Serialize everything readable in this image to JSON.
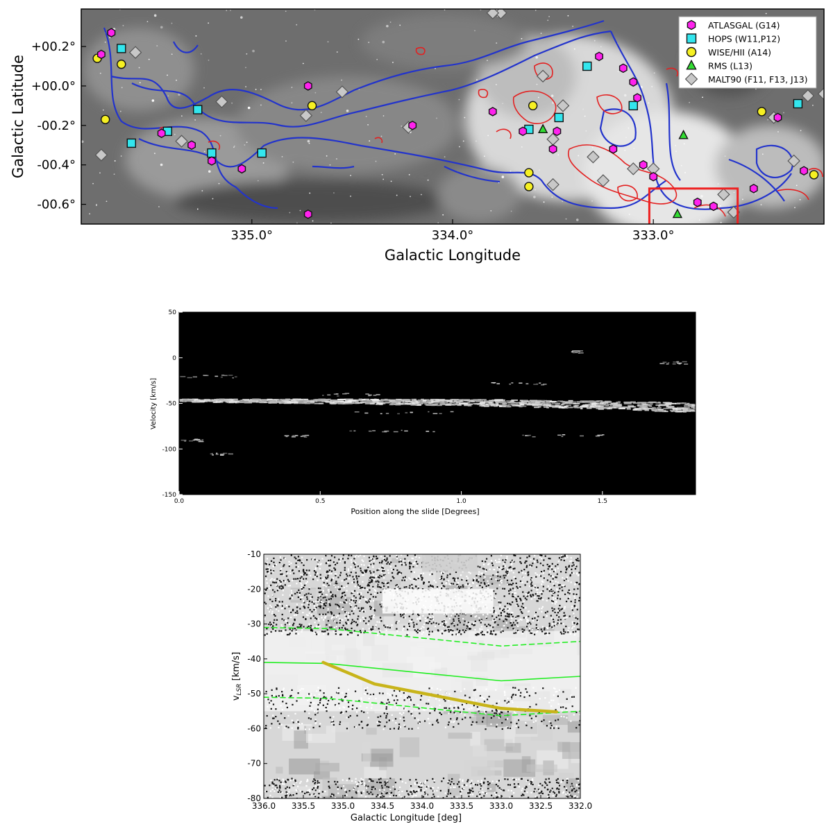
{
  "chart_data": [
    {
      "type": "scatter",
      "panel": "sky-map",
      "xlabel": "Galactic Longitude",
      "ylabel": "Galactic Latitude",
      "xlim": [
        335.85,
        332.15
      ],
      "ylim": [
        -0.7,
        0.39
      ],
      "x_ticks": [
        {
          "v": 335.0,
          "label": "335.0°"
        },
        {
          "v": 334.0,
          "label": "334.0°"
        },
        {
          "v": 333.0,
          "label": "333.0°"
        }
      ],
      "y_ticks": [
        {
          "v": 0.2,
          "label": "+00.2°"
        },
        {
          "v": 0.0,
          "label": "+00.0°"
        },
        {
          "v": -0.2,
          "label": "-00.2°"
        },
        {
          "v": -0.4,
          "label": "-00.4°"
        },
        {
          "v": -0.6,
          "label": "-00.6°"
        }
      ],
      "background": "grayscale",
      "legend_position": "top-right",
      "series": [
        {
          "name": "ATLASGAL (G14)",
          "marker": "hexagon",
          "color": "#ff22ee",
          "points": [
            [
              335.7,
              0.27
            ],
            [
              335.75,
              0.16
            ],
            [
              335.45,
              -0.24
            ],
            [
              335.3,
              -0.3
            ],
            [
              335.2,
              -0.38
            ],
            [
              335.05,
              -0.42
            ],
            [
              334.72,
              0.0
            ],
            [
              334.2,
              -0.2
            ],
            [
              333.8,
              -0.13
            ],
            [
              333.65,
              -0.23
            ],
            [
              333.5,
              -0.32
            ],
            [
              333.48,
              -0.23
            ],
            [
              333.27,
              0.15
            ],
            [
              333.2,
              -0.32
            ],
            [
              333.15,
              0.09
            ],
            [
              333.1,
              0.02
            ],
            [
              333.08,
              -0.06
            ],
            [
              333.05,
              -0.4
            ],
            [
              333.0,
              -0.46
            ],
            [
              332.78,
              -0.59
            ],
            [
              332.7,
              -0.61
            ],
            [
              332.5,
              -0.52
            ],
            [
              332.38,
              -0.16
            ],
            [
              332.25,
              -0.43
            ],
            [
              334.72,
              -0.65
            ]
          ]
        },
        {
          "name": "HOPS (W11,P12)",
          "marker": "square",
          "color": "#33e6ee",
          "points": [
            [
              335.65,
              0.19
            ],
            [
              335.6,
              -0.29
            ],
            [
              335.42,
              -0.23
            ],
            [
              335.27,
              -0.12
            ],
            [
              335.2,
              -0.34
            ],
            [
              334.95,
              -0.34
            ],
            [
              333.62,
              -0.22
            ],
            [
              333.47,
              -0.16
            ],
            [
              333.33,
              0.1
            ],
            [
              333.1,
              -0.1
            ],
            [
              332.28,
              -0.09
            ]
          ]
        },
        {
          "name": "WISE/HII (A14)",
          "marker": "circle",
          "color": "#f6f022",
          "points": [
            [
              335.77,
              0.14
            ],
            [
              335.65,
              0.11
            ],
            [
              335.73,
              -0.17
            ],
            [
              334.7,
              -0.1
            ],
            [
              333.6,
              -0.1
            ],
            [
              333.62,
              -0.44
            ],
            [
              333.62,
              -0.51
            ],
            [
              332.46,
              -0.13
            ],
            [
              332.2,
              -0.45
            ]
          ]
        },
        {
          "name": "RMS (L13)",
          "marker": "triangle",
          "color": "#33dd33",
          "points": [
            [
              332.85,
              -0.25
            ],
            [
              333.55,
              -0.22
            ],
            [
              332.88,
              -0.65
            ]
          ]
        },
        {
          "name": "MALT90 (F11, F13, J13)",
          "marker": "diamond",
          "color": "#c8c8c8",
          "points": [
            [
              335.58,
              0.17
            ],
            [
              335.75,
              -0.35
            ],
            [
              335.15,
              -0.08
            ],
            [
              334.55,
              -0.03
            ],
            [
              334.22,
              -0.21
            ],
            [
              333.55,
              0.05
            ],
            [
              333.45,
              -0.1
            ],
            [
              333.5,
              -0.27
            ],
            [
              333.3,
              -0.36
            ],
            [
              333.25,
              -0.48
            ],
            [
              333.1,
              -0.42
            ],
            [
              333.0,
              -0.42
            ],
            [
              332.4,
              -0.16
            ],
            [
              332.3,
              -0.38
            ],
            [
              332.15,
              -0.04
            ],
            [
              332.23,
              -0.05
            ],
            [
              332.6,
              -0.64
            ],
            [
              333.76,
              0.37
            ],
            [
              333.8,
              0.37
            ],
            [
              335.35,
              -0.28
            ],
            [
              334.73,
              -0.15
            ],
            [
              333.5,
              -0.5
            ],
            [
              332.65,
              -0.55
            ]
          ]
        }
      ],
      "annotations": [
        {
          "type": "box",
          "color": "#ee2020",
          "lmin": 332.58,
          "lmax": 333.02,
          "bmin": -0.7,
          "bmax": -0.52
        }
      ]
    },
    {
      "type": "heatmap",
      "panel": "position-velocity",
      "xlabel": "Position along the slide [Degrees]",
      "ylabel": "Velocity [km/s]",
      "xlim": [
        0.0,
        1.83
      ],
      "ylim": [
        -150,
        50
      ],
      "x_ticks": [
        0.0,
        0.5,
        1.0,
        1.5
      ],
      "x_tick_labels": [
        "0.0",
        "0.5",
        "1.0",
        "1.5"
      ],
      "y_ticks": [
        50,
        0,
        -50,
        -100,
        -150
      ],
      "y_tick_labels": [
        "50",
        "0",
        "-50",
        "-100",
        "-150"
      ],
      "colormap": "gray",
      "main_emission_band": {
        "position": [
          0.0,
          0.3,
          0.6,
          0.9,
          1.2,
          1.5,
          1.83
        ],
        "velocity": [
          -47,
          -47.5,
          -48,
          -49,
          -50,
          -52,
          -55
        ]
      }
    },
    {
      "type": "line",
      "panel": "longitude-velocity",
      "xlabel": "Galactic Longitude [deg]",
      "ylabel": "v",
      "ylabel_sub": "LSR",
      "ylabel_unit": " [km/s]",
      "xlim": [
        336.0,
        332.0
      ],
      "ylim": [
        -80,
        -10
      ],
      "x_ticks": [
        336.0,
        335.5,
        335.0,
        334.5,
        334.0,
        333.5,
        333.0,
        332.5,
        332.0
      ],
      "x_tick_labels": [
        "336.0",
        "335.5",
        "335.0",
        "334.5",
        "334.0",
        "333.5",
        "333.0",
        "332.5",
        "332.0"
      ],
      "y_ticks": [
        -10,
        -20,
        -30,
        -40,
        -50,
        -60,
        -70,
        -80
      ],
      "y_tick_labels": [
        "-10",
        "-20",
        "-30",
        "-40",
        "-50",
        "-60",
        "-70",
        "-80"
      ],
      "colormap": "gray",
      "series": [
        {
          "color": "#22ee22",
          "style": "solid",
          "width": 1.6,
          "x": [
            336.0,
            335.2,
            333.0,
            332.0
          ],
          "y": [
            -41,
            -41.3,
            -46.3,
            -45
          ]
        },
        {
          "color": "#22ee22",
          "style": "dashed",
          "width": 1.6,
          "x": [
            336.0,
            335.2,
            333.0,
            332.0
          ],
          "y": [
            -31,
            -31.3,
            -36.3,
            -35
          ]
        },
        {
          "color": "#22ee22",
          "style": "dashed",
          "width": 1.6,
          "x": [
            336.0,
            335.2,
            333.0,
            332.0
          ],
          "y": [
            -51,
            -51.3,
            -56.3,
            -55
          ]
        },
        {
          "color": "#c8b41a",
          "style": "solid",
          "width": 4.5,
          "x": [
            335.25,
            334.6,
            333.0,
            332.3
          ],
          "y": [
            -41,
            -47.2,
            -54.2,
            -55.2
          ]
        }
      ]
    }
  ]
}
